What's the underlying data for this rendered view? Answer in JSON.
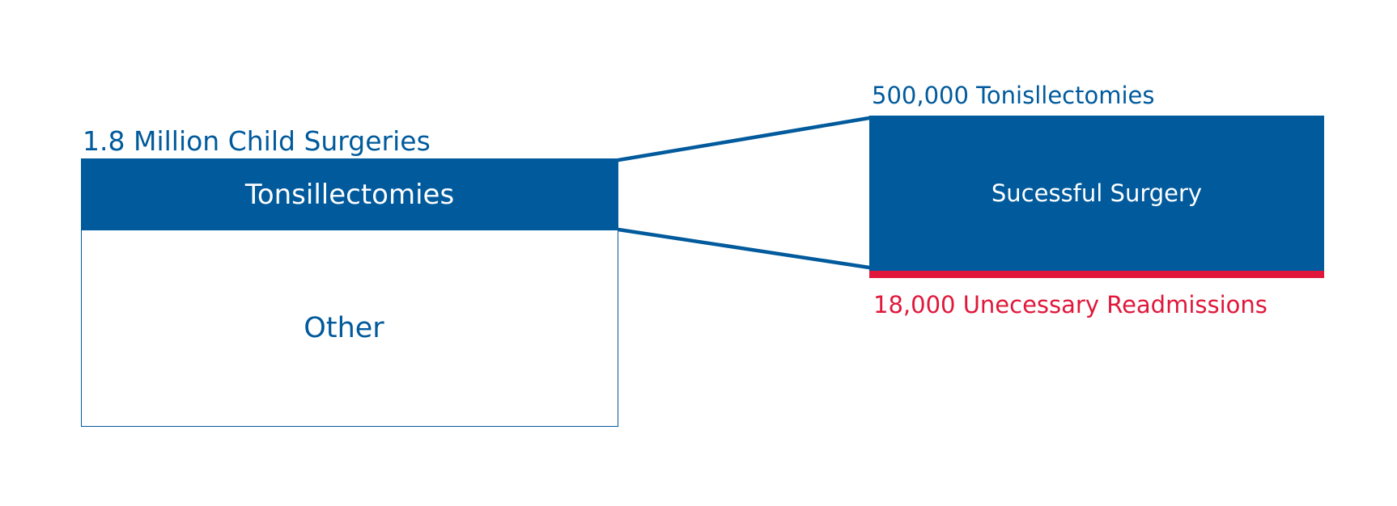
{
  "colors": {
    "primary": "#005a9c",
    "accent": "#e0173a",
    "text_on_primary": "#ffffff",
    "background": "#ffffff"
  },
  "left_panel": {
    "total_label": "1.8 Million Child Surgeries",
    "highlight_label": "Tonsillectomies",
    "other_label": "Other"
  },
  "right_panel": {
    "total_label": "500,000 Tonisllectomies",
    "box_label": "Sucessful Surgery",
    "readmission_label": "18,000 Unecessary Readmissions"
  }
}
